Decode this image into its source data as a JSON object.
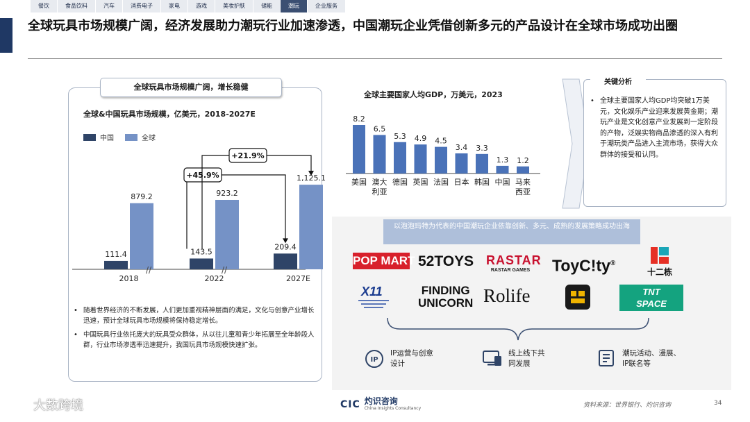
{
  "nav": {
    "tabs": [
      "餐饮",
      "食品饮料",
      "汽车",
      "消费电子",
      "家电",
      "游戏",
      "美妆护肤",
      "储能",
      "潮玩",
      "企业服务"
    ],
    "active_index": 8
  },
  "page": {
    "title": "全球玩具市场规模广阔，经济发展助力潮玩行业加速渗透，中国潮玩企业凭借创新多元的产品设计在全球市场成功出圈"
  },
  "left_panel": {
    "label": "全球玩具市场规模广阔，增长稳健",
    "chart_title": "全球&中国玩具市场规模，亿美元，2018-2027E",
    "legend": [
      "中国",
      "全球"
    ],
    "growth_labels": [
      "+45.9%",
      "+21.9%"
    ],
    "bullets": [
      "随着世界经济的不断发展，人们更加重视精神层面的满足，文化与创意产业增长迅速，预计全球玩具市场规模将保持稳定增长。",
      "中国玩具行业依托庞大的玩具受众群体，从以往儿童和青少年拓展至全年龄段人群，行业市场渗透率迅速提升，我国玩具市场规模快速扩张。"
    ]
  },
  "gdp_chart": {
    "title": "全球主要国家人均GDP，万美元，2023"
  },
  "key_findings": {
    "title": "关键分析",
    "text": "全球主要国家人均GDP均突破1万美元，文化娱乐产业迎来发展黄金期；潮玩产业是文化创意产业发展到一定阶段的产物，泛娱实物商品渗透的深入有利于潮玩类产品进入主流市场，获得大众群体的接受和认同。"
  },
  "strip": {
    "text": "以泡泡玛特为代表的中国潮玩企业依靠创新、多元、成熟的发展策略成功出海"
  },
  "logos": [
    "POP MART",
    "52TOYS",
    "RASTAR",
    "RASTAR GAMES",
    "ToyC!ty",
    "®",
    "十二栋",
    "X11",
    "FINDING",
    "UNICORN",
    "Rolife",
    "TNT",
    "SPACE"
  ],
  "features": [
    "IP运营与创意设计",
    "线上线下共同发展",
    "潮玩活动、漫展、IP联名等"
  ],
  "footer": {
    "source": "资料来源：世界银行、灼识咨询",
    "page": "34",
    "brand": "大数跨境",
    "cic_name": "灼识咨询",
    "cic_en": "China Insights Consultancy",
    "cic_abbr": "CIC"
  },
  "colors": {
    "navy": "#1f3864",
    "china": "#2f4467",
    "global": "#7592c6",
    "gdp": "#4a72b8",
    "accent": "#3b4f72"
  },
  "chart_data": [
    {
      "type": "bar",
      "title": "全球&中国玩具市场规模，亿美元，2018-2027E",
      "categories": [
        "2018",
        "2022",
        "2027E"
      ],
      "series": [
        {
          "name": "中国",
          "values": [
            111.4,
            143.5,
            209.4
          ],
          "labels": [
            "111.4",
            "143.5",
            "209.4"
          ]
        },
        {
          "name": "全球",
          "values": [
            879.2,
            923.2,
            1125.1
          ],
          "labels": [
            "879.2",
            "923.2",
            "1,125.1"
          ]
        }
      ],
      "ylim": [
        0,
        1200
      ],
      "legend": "top-left",
      "grid": false
    },
    {
      "type": "bar",
      "title": "全球主要国家人均GDP，万美元，2023",
      "categories": [
        "美国",
        "澳大利亚",
        "德国",
        "英国",
        "法国",
        "日本",
        "韩国",
        "中国",
        "马来西亚"
      ],
      "values": [
        8.2,
        6.5,
        5.3,
        4.9,
        4.5,
        3.4,
        3.3,
        1.3,
        1.2
      ],
      "ylim": [
        0,
        9
      ],
      "grid": false
    }
  ]
}
